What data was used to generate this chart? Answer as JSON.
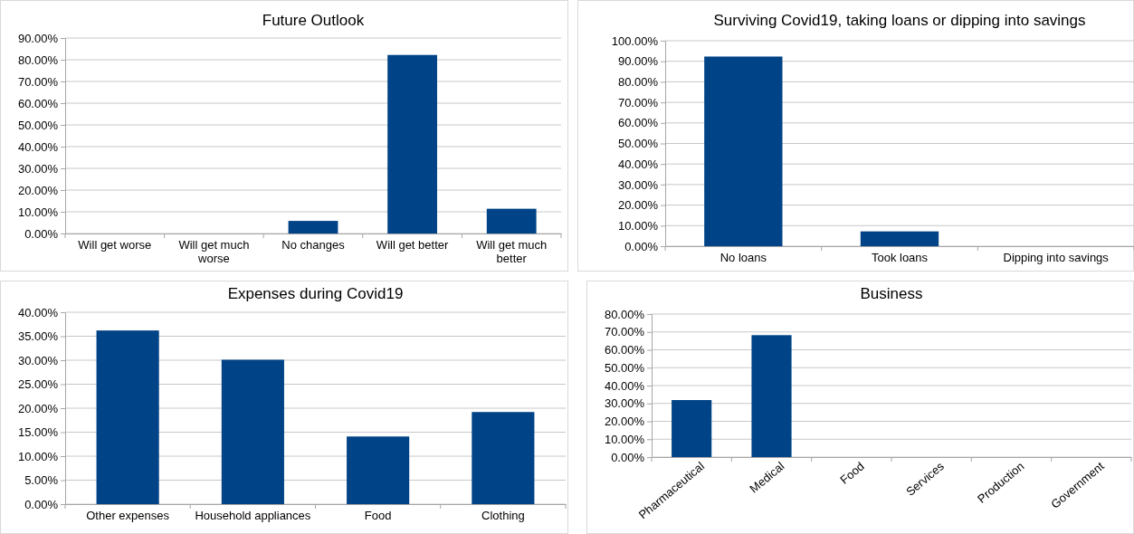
{
  "chart_data": [
    {
      "type": "bar",
      "title": "Future Outlook",
      "categories": [
        "Will get worse",
        "Will get much worse",
        "No changes",
        "Will get better",
        "Will get much better"
      ],
      "values": [
        0,
        0,
        5.8,
        82.2,
        11.4
      ],
      "color": "#004386",
      "ylim": [
        0,
        90
      ],
      "yticks": [
        {
          "value": 0,
          "label": "0.00%"
        },
        {
          "value": 10,
          "label": "10.00%"
        },
        {
          "value": 20,
          "label": "20.00%"
        },
        {
          "value": 30,
          "label": "30.00%"
        },
        {
          "value": 40,
          "label": "40.00%"
        },
        {
          "value": 50,
          "label": "50.00%"
        },
        {
          "value": 60,
          "label": "60.00%"
        },
        {
          "value": 70,
          "label": "70.00%"
        },
        {
          "value": 80,
          "label": "80.00%"
        },
        {
          "value": 90,
          "label": "90.00%"
        }
      ],
      "grid": "y"
    },
    {
      "type": "bar",
      "title": "Surviving Covid19, taking loans or dipping into savings",
      "categories": [
        "No loans",
        "Took loans",
        "Dipping into savings"
      ],
      "values": [
        92.3,
        7.2,
        0
      ],
      "color": "#004386",
      "ylim": [
        0,
        100
      ],
      "yticks": [
        {
          "value": 0,
          "label": "0.00%"
        },
        {
          "value": 10,
          "label": "10.00%"
        },
        {
          "value": 20,
          "label": "20.00%"
        },
        {
          "value": 30,
          "label": "30.00%"
        },
        {
          "value": 40,
          "label": "40.00%"
        },
        {
          "value": 50,
          "label": "50.00%"
        },
        {
          "value": 60,
          "label": "60.00%"
        },
        {
          "value": 70,
          "label": "70.00%"
        },
        {
          "value": 80,
          "label": "80.00%"
        },
        {
          "value": 90,
          "label": "90.00%"
        },
        {
          "value": 100,
          "label": "100.00%"
        }
      ],
      "grid": "y"
    },
    {
      "type": "bar",
      "title": "Expenses during Covid19",
      "categories": [
        "Other expenses",
        "Household appliances",
        "Food",
        "Clothing"
      ],
      "values": [
        36.2,
        30.1,
        14.1,
        19.2
      ],
      "color": "#004386",
      "ylim": [
        0,
        40
      ],
      "yticks": [
        {
          "value": 0,
          "label": "0.00%"
        },
        {
          "value": 5,
          "label": "5.00%"
        },
        {
          "value": 10,
          "label": "10.00%"
        },
        {
          "value": 15,
          "label": "15.00%"
        },
        {
          "value": 20,
          "label": "20.00%"
        },
        {
          "value": 25,
          "label": "25.00%"
        },
        {
          "value": 30,
          "label": "30.00%"
        },
        {
          "value": 35,
          "label": "35.00%"
        },
        {
          "value": 40,
          "label": "40.00%"
        }
      ],
      "grid": "y"
    },
    {
      "type": "bar",
      "title": "Business",
      "categories": [
        "Pharmaceutical",
        "Medical",
        "Food",
        "Services",
        "Production",
        "Government"
      ],
      "values": [
        31.9,
        68.2,
        0,
        0,
        0,
        0
      ],
      "color": "#004386",
      "ylim": [
        0,
        80
      ],
      "yticks": [
        {
          "value": 0,
          "label": "0.00%"
        },
        {
          "value": 10,
          "label": "10.00%"
        },
        {
          "value": 20,
          "label": "20.00%"
        },
        {
          "value": 30,
          "label": "30.00%"
        },
        {
          "value": 40,
          "label": "40.00%"
        },
        {
          "value": 50,
          "label": "50.00%"
        },
        {
          "value": 60,
          "label": "60.00%"
        },
        {
          "value": 70,
          "label": "70.00%"
        },
        {
          "value": 80,
          "label": "80.00%"
        }
      ],
      "grid": "y"
    }
  ]
}
